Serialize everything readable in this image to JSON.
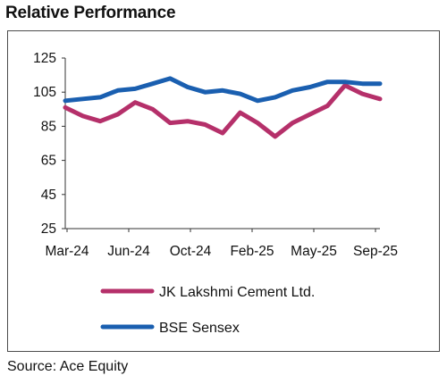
{
  "header": {
    "title": "Relative Performance"
  },
  "footer": {
    "source": "Source: Ace Equity"
  },
  "colors": {
    "jk": "#b5306a",
    "sensex": "#1a5fb0",
    "axis": "#333333",
    "frame": "#4d4d4d"
  },
  "chart_data": {
    "type": "line",
    "title": "Relative Performance",
    "xlabel": "",
    "ylabel": "",
    "ylim": [
      25,
      125
    ],
    "yticks": [
      25,
      45,
      65,
      85,
      105,
      125
    ],
    "xtick_labels": [
      "Mar-24",
      "Jun-24",
      "Oct-24",
      "Feb-25",
      "May-25",
      "Sep-25"
    ],
    "grid": false,
    "legend_position": "bottom",
    "x": [
      "Mar-24",
      "Apr-24",
      "May-24",
      "Jun-24",
      "Jul-24",
      "Aug-24",
      "Sep-24",
      "Oct-24",
      "Nov-24",
      "Dec-24",
      "Jan-25",
      "Feb-25",
      "Mar-25",
      "Apr-25",
      "May-25",
      "Jun-25",
      "Jul-25",
      "Aug-25",
      "Sep-25"
    ],
    "series": [
      {
        "name": "JK Lakshmi Cement Ltd.",
        "values": [
          96,
          91,
          88,
          92,
          99,
          95,
          87,
          88,
          86,
          81,
          93,
          87,
          79,
          87,
          92,
          97,
          109,
          104,
          101
        ]
      },
      {
        "name": "BSE Sensex",
        "values": [
          100,
          101,
          102,
          106,
          107,
          110,
          113,
          108,
          105,
          106,
          104,
          100,
          102,
          106,
          108,
          111,
          111,
          110,
          110
        ]
      }
    ]
  }
}
